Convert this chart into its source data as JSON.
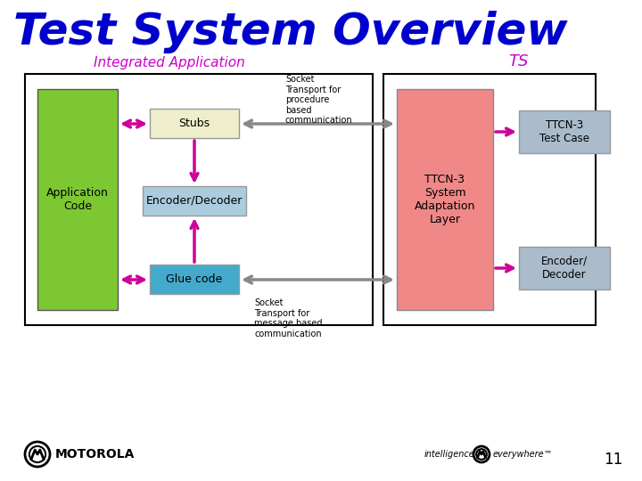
{
  "title": "Test System Overview",
  "title_color": "#0000CC",
  "title_fontsize": 36,
  "bg_color": "#FFFFFF",
  "label_integrated": "Integrated Application",
  "label_ts": "TS",
  "label_app_code": "Application\nCode",
  "label_stubs": "Stubs",
  "label_encoder_decoder": "Encoder/Decoder",
  "label_glue_code": "Glue code",
  "label_ttcn3_sal": "TTCN-3\nSystem\nAdaptation\nLayer",
  "label_ttcn3_tc": "TTCN-3\nTest Case",
  "label_encoder_decoder2": "Encoder/\nDecoder",
  "label_socket_proc": "Socket\nTransport for\nprocedure\nbased\ncommunication",
  "label_socket_msg": "Socket\nTransport for\nmessage based\ncommunication",
  "label_page": "11",
  "color_green": "#7DC832",
  "color_salmon": "#F08888",
  "color_blue_box": "#6699CC",
  "color_cyan_box": "#44AACC",
  "color_light_blue_box": "#AABBCC",
  "color_stubs_box": "#EEEECC",
  "color_enc_dec_box": "#AACCDD",
  "color_magenta_arrow": "#CC0099",
  "color_gray_arrow": "#888888",
  "motorola_text": "MOTOROLA",
  "intelligence_text": "intelligence",
  "everywhere_text": "everywhere"
}
